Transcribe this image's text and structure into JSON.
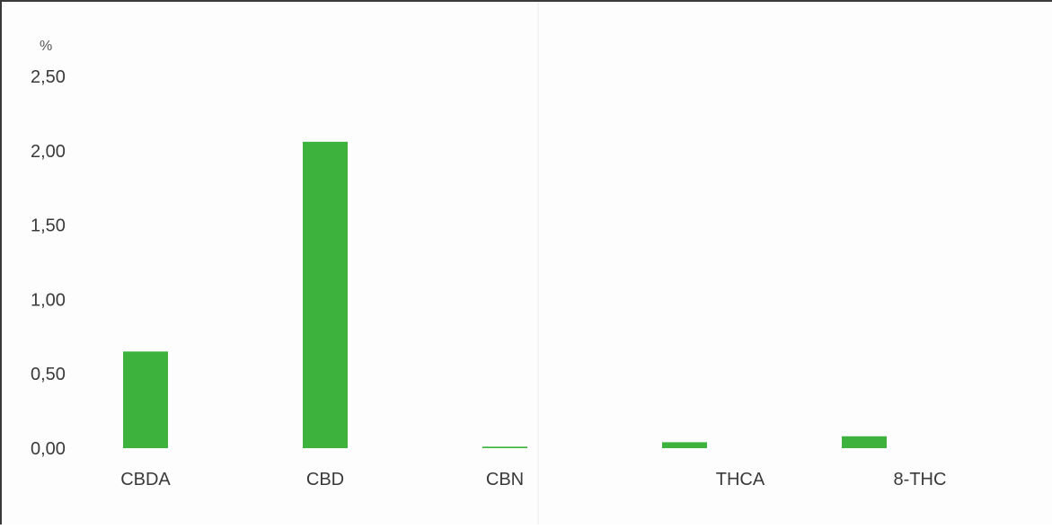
{
  "chart_data": {
    "type": "bar",
    "ylabel": "%",
    "categories": [
      "CBDA",
      "CBD",
      "CBN",
      "THCA",
      "8-THC"
    ],
    "values": [
      0.65,
      2.06,
      0.01,
      0.04,
      0.08
    ],
    "ylim": [
      0,
      2.5
    ],
    "yticks": [
      "0,00",
      "0,50",
      "1,00",
      "1,50",
      "2,00",
      "2,50"
    ],
    "ytick_values": [
      0,
      0.5,
      1.0,
      1.5,
      2.0,
      2.5
    ],
    "grid": false,
    "legend": "none",
    "bar_color": "#3db33d"
  }
}
